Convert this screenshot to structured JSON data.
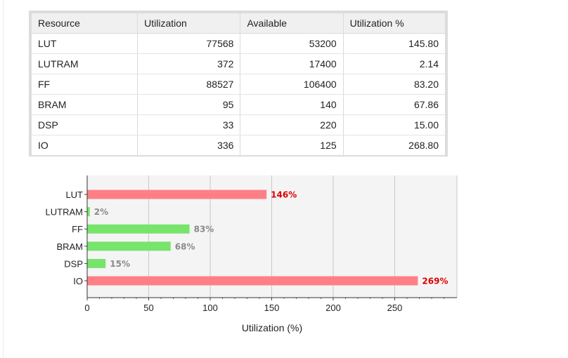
{
  "table": {
    "headers": [
      "Resource",
      "Utilization",
      "Available",
      "Utilization %"
    ],
    "rows": [
      [
        "LUT",
        "77568",
        "53200",
        "145.80"
      ],
      [
        "LUTRAM",
        "372",
        "17400",
        "2.14"
      ],
      [
        "FF",
        "88527",
        "106400",
        "83.20"
      ],
      [
        "BRAM",
        "95",
        "140",
        "67.86"
      ],
      [
        "DSP",
        "33",
        "220",
        "15.00"
      ],
      [
        "IO",
        "336",
        "125",
        "268.80"
      ]
    ]
  },
  "chart_data": {
    "type": "bar",
    "orientation": "horizontal",
    "categories": [
      "LUT",
      "LUTRAM",
      "FF",
      "BRAM",
      "DSP",
      "IO"
    ],
    "values": [
      145.8,
      2.14,
      83.2,
      67.86,
      15.0,
      268.8
    ],
    "data_labels": [
      "146%",
      "2%",
      "83%",
      "68%",
      "15%",
      "269%"
    ],
    "over_limit": [
      true,
      false,
      false,
      false,
      false,
      true
    ],
    "xlabel": "Utilization (%)",
    "ylabel": "",
    "xlim": [
      0,
      300
    ],
    "xticks": [
      0,
      50,
      100,
      150,
      200,
      250
    ],
    "grid": true,
    "colors": {
      "over": "#ff7f86",
      "under": "#77e46c",
      "over_label": "#dd0000",
      "under_label": "#8a8a8a",
      "plot_bg": "#f4f4f4",
      "grid": "#c8c8c8"
    }
  }
}
